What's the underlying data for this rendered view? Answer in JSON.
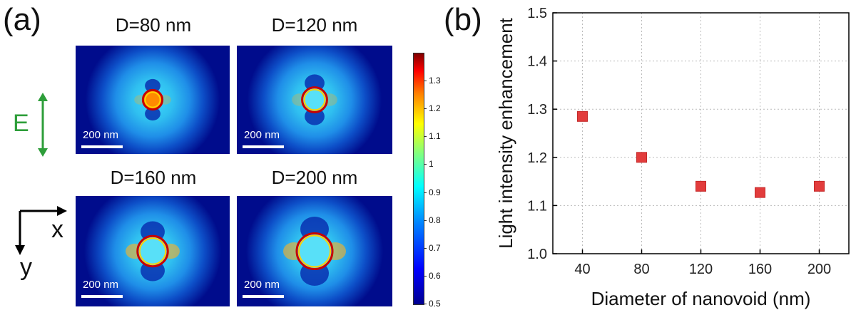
{
  "panel_a": {
    "letter": "(a)",
    "maps": [
      {
        "title": "D=80 nm",
        "diameter_nm": 80,
        "scalebar_label": "200 nm"
      },
      {
        "title": "D=120 nm",
        "diameter_nm": 120,
        "scalebar_label": "200 nm"
      },
      {
        "title": "D=160 nm",
        "diameter_nm": 160,
        "scalebar_label": "200 nm"
      },
      {
        "title": "D=200 nm",
        "diameter_nm": 200,
        "scalebar_label": "200 nm"
      }
    ],
    "field_label": "E",
    "axis_x_label": "x",
    "axis_y_label": "y",
    "colorbar": {
      "ticks": [
        "1.3",
        "1.2",
        "1.1",
        "1",
        "0.9",
        "0.8",
        "0.7",
        "0.6",
        "0.5"
      ],
      "range": [
        0.5,
        1.4
      ]
    },
    "colors": {
      "field_arrow": "#2e9e3a",
      "background_map": "#000c8c"
    }
  },
  "panel_b": {
    "letter": "(b)",
    "chart_data": {
      "type": "scatter",
      "x": [
        40,
        80,
        120,
        160,
        200
      ],
      "y": [
        1.285,
        1.2,
        1.14,
        1.127,
        1.14
      ],
      "xlabel": "Diameter of nanovoid (nm)",
      "ylabel": "Light intensity enhancement",
      "xticks": [
        "40",
        "80",
        "120",
        "160",
        "200"
      ],
      "yticks": [
        "1.0",
        "1.1",
        "1.2",
        "1.3",
        "1.4",
        "1.5"
      ],
      "xlim": [
        20,
        220
      ],
      "ylim": [
        1.0,
        1.5
      ],
      "grid": true,
      "marker_color": "#e23c3c"
    }
  }
}
